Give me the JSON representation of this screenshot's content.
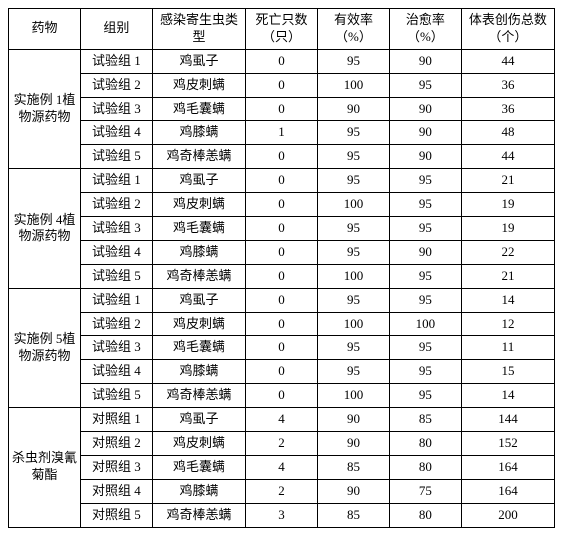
{
  "headers": {
    "drug": "药物",
    "group": "组别",
    "parasite": "感染寄生虫类型",
    "death": "死亡只数（只）",
    "effective": "有效率（%）",
    "cure": "治愈率（%）",
    "wound": "体表创伤总数（个）"
  },
  "sections": [
    {
      "drug_label": "实施例 1植物源药物",
      "rows": [
        {
          "group": "试验组 1",
          "parasite": "鸡虱子",
          "death": "0",
          "effective": "95",
          "cure": "90",
          "wound": "44"
        },
        {
          "group": "试验组 2",
          "parasite": "鸡皮刺螨",
          "death": "0",
          "effective": "100",
          "cure": "95",
          "wound": "36"
        },
        {
          "group": "试验组 3",
          "parasite": "鸡毛囊螨",
          "death": "0",
          "effective": "90",
          "cure": "90",
          "wound": "36"
        },
        {
          "group": "试验组 4",
          "parasite": "鸡膝螨",
          "death": "1",
          "effective": "95",
          "cure": "90",
          "wound": "48"
        },
        {
          "group": "试验组 5",
          "parasite": "鸡奇棒恙螨",
          "death": "0",
          "effective": "95",
          "cure": "90",
          "wound": "44"
        }
      ]
    },
    {
      "drug_label": "实施例 4植物源药物",
      "rows": [
        {
          "group": "试验组 1",
          "parasite": "鸡虱子",
          "death": "0",
          "effective": "95",
          "cure": "95",
          "wound": "21"
        },
        {
          "group": "试验组 2",
          "parasite": "鸡皮刺螨",
          "death": "0",
          "effective": "100",
          "cure": "95",
          "wound": "19"
        },
        {
          "group": "试验组 3",
          "parasite": "鸡毛囊螨",
          "death": "0",
          "effective": "95",
          "cure": "95",
          "wound": "19"
        },
        {
          "group": "试验组 4",
          "parasite": "鸡膝螨",
          "death": "0",
          "effective": "95",
          "cure": "90",
          "wound": "22"
        },
        {
          "group": "试验组 5",
          "parasite": "鸡奇棒恙螨",
          "death": "0",
          "effective": "100",
          "cure": "95",
          "wound": "21"
        }
      ]
    },
    {
      "drug_label": "实施例 5植物源药物",
      "rows": [
        {
          "group": "试验组 1",
          "parasite": "鸡虱子",
          "death": "0",
          "effective": "95",
          "cure": "95",
          "wound": "14"
        },
        {
          "group": "试验组 2",
          "parasite": "鸡皮刺螨",
          "death": "0",
          "effective": "100",
          "cure": "100",
          "wound": "12"
        },
        {
          "group": "试验组 3",
          "parasite": "鸡毛囊螨",
          "death": "0",
          "effective": "95",
          "cure": "95",
          "wound": "11"
        },
        {
          "group": "试验组 4",
          "parasite": "鸡膝螨",
          "death": "0",
          "effective": "95",
          "cure": "95",
          "wound": "15"
        },
        {
          "group": "试验组 5",
          "parasite": "鸡奇棒恙螨",
          "death": "0",
          "effective": "100",
          "cure": "95",
          "wound": "14"
        }
      ]
    },
    {
      "drug_label": "杀虫剂溴氰菊酯",
      "rows": [
        {
          "group": "对照组 1",
          "parasite": "鸡虱子",
          "death": "4",
          "effective": "90",
          "cure": "85",
          "wound": "144"
        },
        {
          "group": "对照组 2",
          "parasite": "鸡皮刺螨",
          "death": "2",
          "effective": "90",
          "cure": "80",
          "wound": "152"
        },
        {
          "group": "对照组 3",
          "parasite": "鸡毛囊螨",
          "death": "4",
          "effective": "85",
          "cure": "80",
          "wound": "164"
        },
        {
          "group": "对照组 4",
          "parasite": "鸡膝螨",
          "death": "2",
          "effective": "90",
          "cure": "75",
          "wound": "164"
        },
        {
          "group": "对照组 5",
          "parasite": "鸡奇棒恙螨",
          "death": "3",
          "effective": "85",
          "cure": "80",
          "wound": "200"
        }
      ]
    }
  ]
}
